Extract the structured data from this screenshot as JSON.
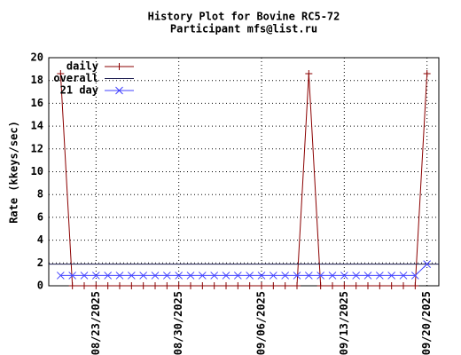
{
  "chart_data": {
    "type": "line",
    "title": "History Plot for Bovine RC5-72",
    "subtitle": "Participant mfs@list.ru",
    "y_label": "Rate (kkeys/sec)",
    "x": [
      "08/20/2025",
      "08/21/2025",
      "08/22/2025",
      "08/23/2025",
      "08/24/2025",
      "08/25/2025",
      "08/26/2025",
      "08/27/2025",
      "08/28/2025",
      "08/29/2025",
      "08/30/2025",
      "08/31/2025",
      "09/01/2025",
      "09/02/2025",
      "09/03/2025",
      "09/04/2025",
      "09/05/2025",
      "09/06/2025",
      "09/07/2025",
      "09/08/2025",
      "09/09/2025",
      "09/10/2025",
      "09/11/2025",
      "09/12/2025",
      "09/13/2025",
      "09/14/2025",
      "09/15/2025",
      "09/16/2025",
      "09/17/2025",
      "09/18/2025",
      "09/19/2025",
      "09/20/2025"
    ],
    "series": [
      {
        "name": "daily",
        "color": "#8b0000",
        "marker": "plus",
        "values": [
          18.6,
          0,
          0,
          0,
          0,
          0,
          0,
          0,
          0,
          0,
          0,
          0,
          0,
          0,
          0,
          0,
          0,
          0,
          0,
          0,
          0,
          18.6,
          0,
          0,
          0,
          0,
          0,
          0,
          0,
          0,
          0,
          18.6
        ]
      },
      {
        "name": "overall",
        "color": "#1a1a4d",
        "value": 1.9
      },
      {
        "name": "21 day",
        "color": "#4040ff",
        "marker": "cross",
        "values": [
          0.9,
          0.9,
          0.9,
          0.9,
          0.9,
          0.9,
          0.9,
          0.9,
          0.9,
          0.9,
          0.9,
          0.9,
          0.9,
          0.9,
          0.9,
          0.9,
          0.9,
          0.9,
          0.9,
          0.9,
          0.9,
          0.9,
          0.9,
          0.9,
          0.9,
          0.9,
          0.9,
          0.9,
          0.9,
          0.9,
          0.9,
          1.9
        ]
      }
    ],
    "xlim": [
      "08/19/2025",
      "09/21/2025"
    ],
    "xticks": [
      "08/23/2025",
      "08/30/2025",
      "09/06/2025",
      "09/13/2025",
      "09/20/2025"
    ],
    "ylim": [
      0,
      20
    ],
    "yticks": [
      0,
      2,
      4,
      6,
      8,
      10,
      12,
      14,
      16,
      18,
      20
    ],
    "grid": true,
    "legend": "top-left"
  }
}
